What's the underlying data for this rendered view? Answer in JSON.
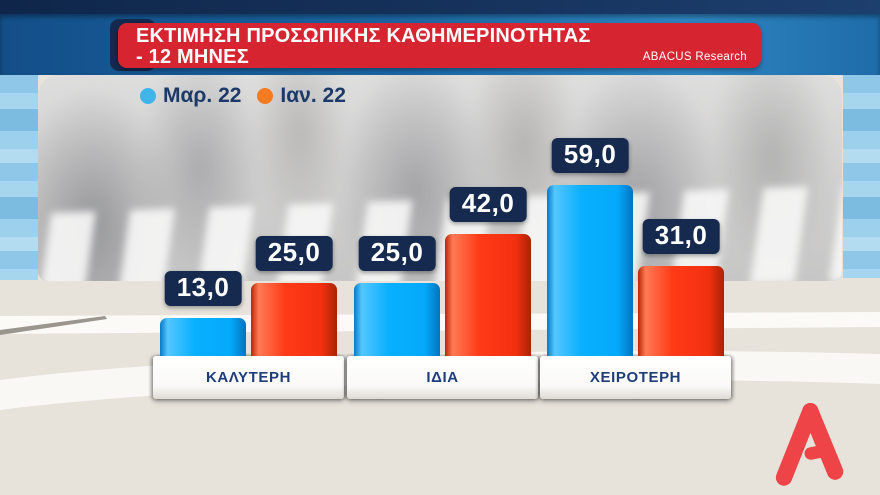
{
  "header": {
    "title_line1": "ΕΚΤΙΜΗΣΗ ΠΡΟΣΩΠΙΚΗΣ ΚΑΘΗΜΕΡΙΝΟΤΗΤΑΣ",
    "title_line2": "- 12 ΜΗΝΕΣ",
    "source": "ABACUS Research",
    "bg_color": "#d62531",
    "accent_color": "#14294e"
  },
  "legend": {
    "items": [
      {
        "label": "Μαρ. 22",
        "color": "#41b5ea"
      },
      {
        "label": "Ιαν. 22",
        "color": "#f57b20"
      }
    ]
  },
  "chart_data": {
    "type": "bar",
    "title": "ΕΚΤΙΜΗΣΗ ΠΡΟΣΩΠΙΚΗΣ ΚΑΘΗΜΕΡΙΝΟΤΗΤΑΣ - 12 ΜΗΝΕΣ",
    "categories": [
      "ΚΑΛΥΤΕΡΗ",
      "ΙΔΙΑ",
      "ΧΕΙΡΟΤΕΡΗ"
    ],
    "series": [
      {
        "name": "Μαρ. 22",
        "color": "#04aaff",
        "values": [
          13.0,
          25.0,
          59.0
        ],
        "labels": [
          "13,0",
          "25,0",
          "59,0"
        ]
      },
      {
        "name": "Ιαν. 22",
        "color": "#ff3512",
        "values": [
          25.0,
          42.0,
          31.0
        ],
        "labels": [
          "25,0",
          "42,0",
          "31,0"
        ]
      }
    ],
    "ylim": [
      0,
      65
    ],
    "grid": false,
    "legend_position": "top-left",
    "value_label_style": {
      "bg": "#152a4e",
      "fg": "#ffffff"
    }
  },
  "logo": {
    "channel": "Alpha",
    "letter": "A",
    "color": "#ee4347"
  }
}
